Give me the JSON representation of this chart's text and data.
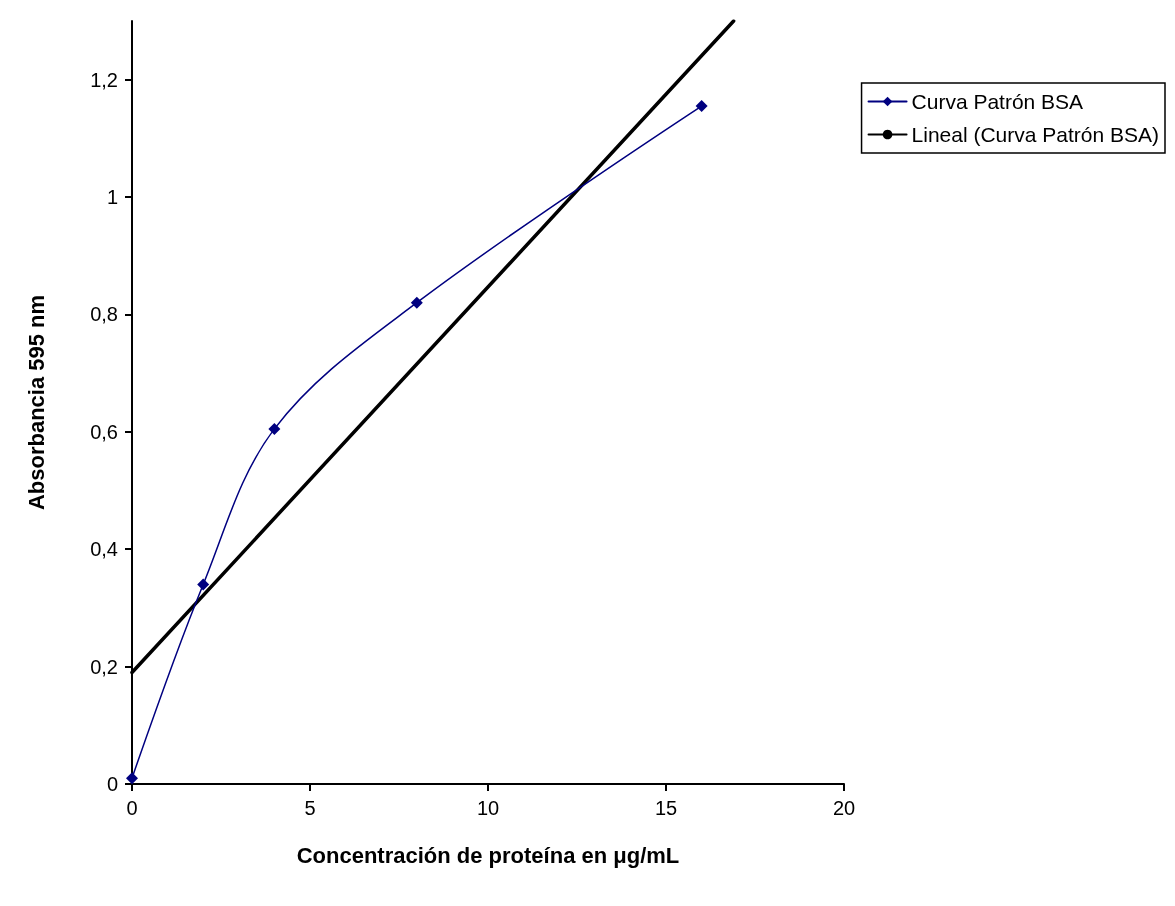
{
  "chart_data": {
    "type": "line",
    "xlabel": "Concentración de proteína en μg/mL",
    "ylabel": "Absorbancia 595 nm",
    "series": [
      {
        "name": "Curva Patrón BSA",
        "color": "#000080",
        "x": [
          0,
          2,
          4,
          8,
          16
        ],
        "values": [
          0.01,
          0.34,
          0.605,
          0.82,
          1.155
        ],
        "marker": "diamond"
      },
      {
        "name": "Lineal (Curva Patrón BSA)",
        "color": "#000000",
        "x": [
          0,
          16.9
        ],
        "values": [
          0.19,
          1.3
        ],
        "marker": "none"
      }
    ],
    "xlim": [
      0,
      20
    ],
    "xticks": [
      0,
      5,
      10,
      15,
      20
    ],
    "ylim": [
      0,
      1.3
    ],
    "yticks": [
      0,
      {
        "value": 0.2,
        "label": "0,2"
      },
      {
        "value": 0.4,
        "label": "0,4"
      },
      {
        "value": 0.6,
        "label": "0,6"
      },
      {
        "value": 0.8,
        "label": "0,8"
      },
      1,
      {
        "value": 1.2,
        "label": "1,2"
      }
    ],
    "grid": false,
    "legend": "right",
    "line_style": "solid"
  }
}
